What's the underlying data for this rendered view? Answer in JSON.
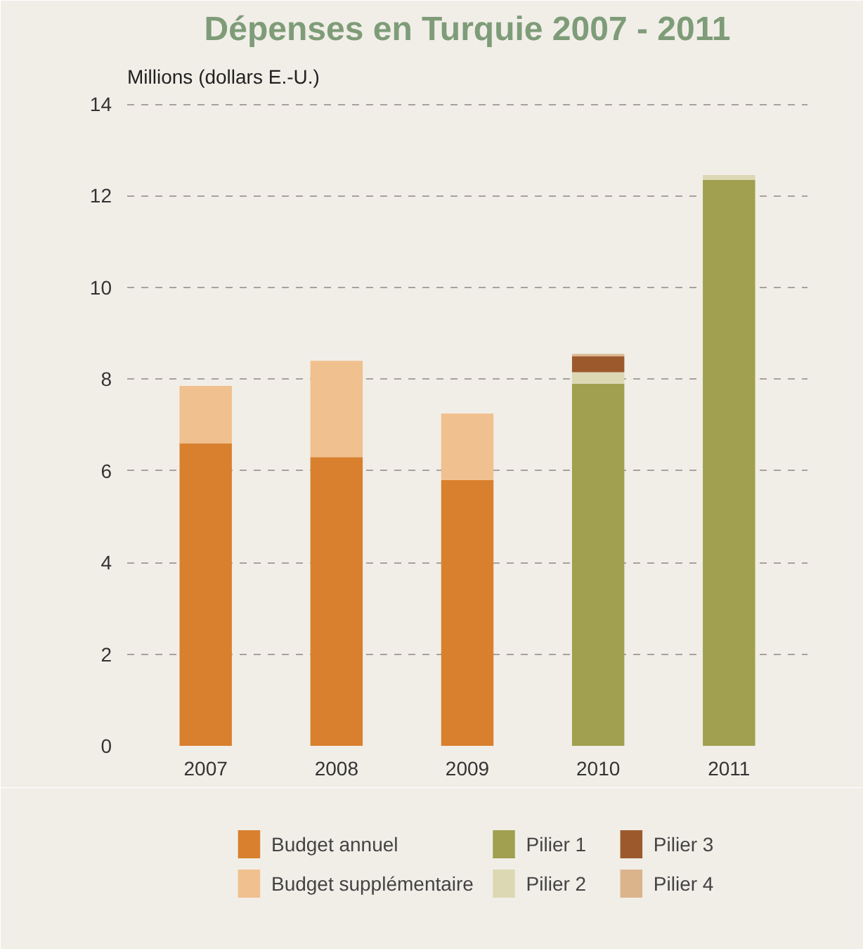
{
  "chart_data": {
    "type": "bar",
    "title": "Dépenses en Turquie 2007 - 2011",
    "ylabel": "Millions (dollars E.-U.)",
    "categories": [
      "2007",
      "2008",
      "2009",
      "2010",
      "2011"
    ],
    "stacked": true,
    "series": [
      {
        "name": "Budget annuel",
        "color": "#d9802e",
        "values": [
          6.6,
          6.3,
          5.8,
          null,
          null
        ]
      },
      {
        "name": "Budget supplémentaire",
        "color": "#f0c08e",
        "values": [
          1.25,
          2.1,
          1.45,
          null,
          null
        ]
      },
      {
        "name": "Pilier 1",
        "color": "#a0a050",
        "values": [
          null,
          null,
          null,
          7.9,
          12.35
        ]
      },
      {
        "name": "Pilier 2",
        "color": "#dcd8b4",
        "values": [
          null,
          null,
          null,
          0.25,
          0.1
        ]
      },
      {
        "name": "Pilier 3",
        "color": "#9c5a2c",
        "values": [
          null,
          null,
          null,
          0.35,
          null
        ]
      },
      {
        "name": "Pilier 4",
        "color": "#dcb48c",
        "values": [
          null,
          null,
          null,
          0.05,
          null
        ]
      }
    ],
    "ylim": [
      0,
      14.2
    ],
    "yticks": [
      0,
      2,
      4,
      6,
      8,
      10,
      12,
      14
    ],
    "grid": "y",
    "legend": "bottom"
  }
}
